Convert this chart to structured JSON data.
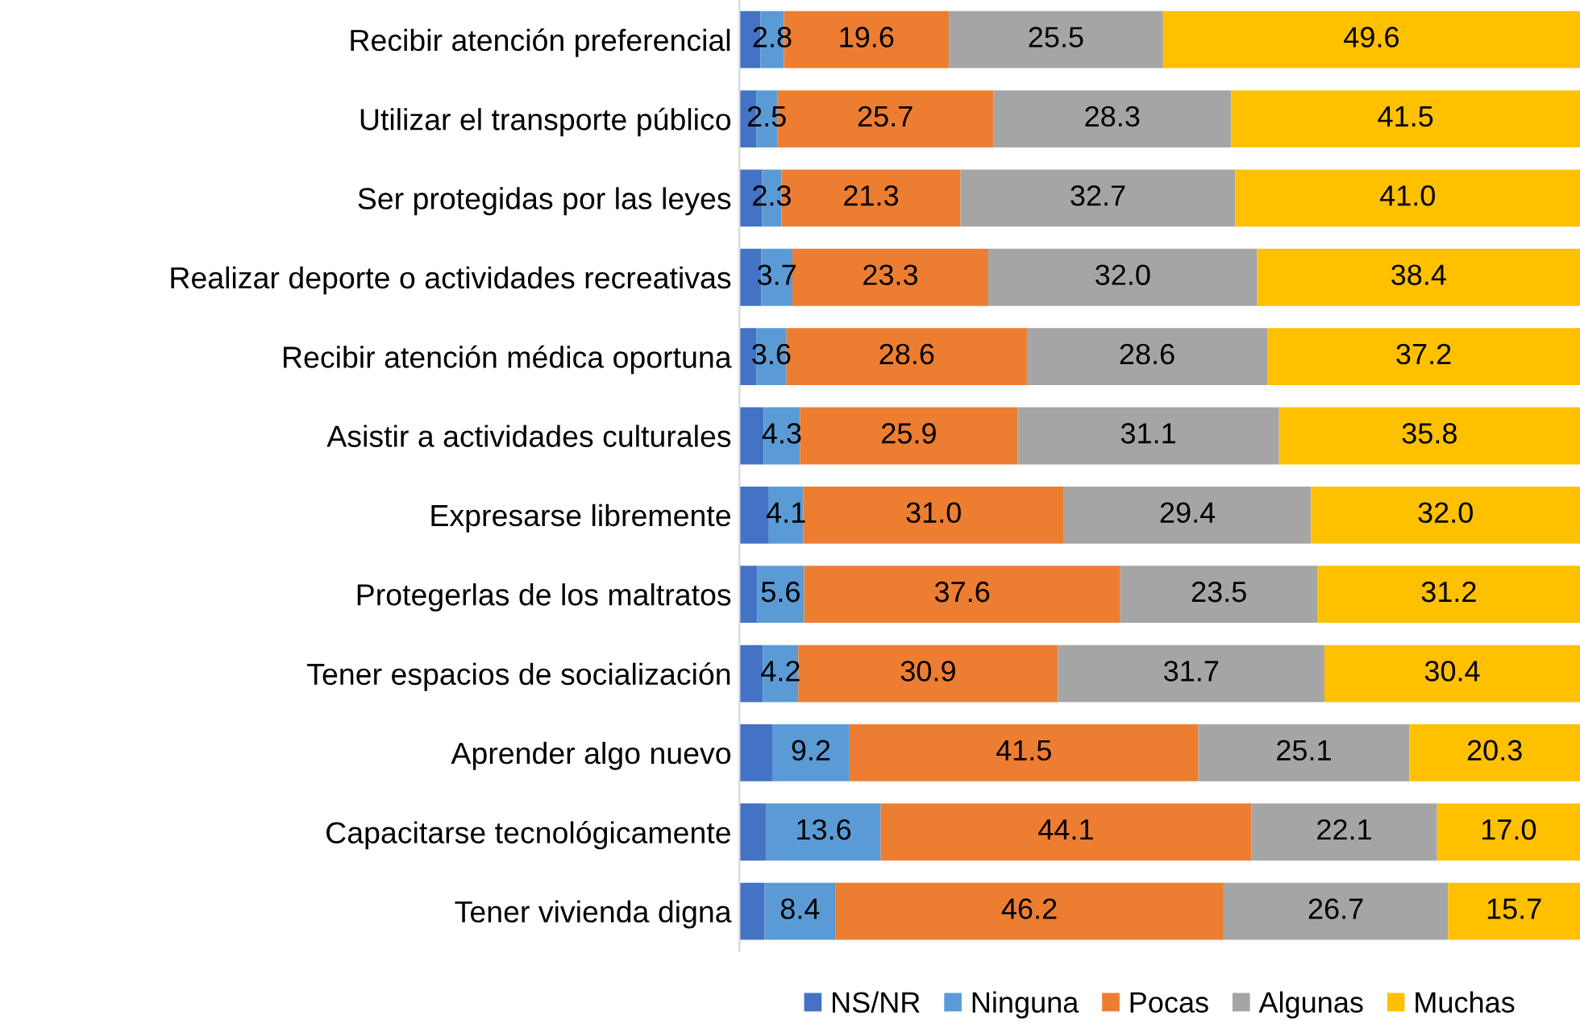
{
  "chart_data": {
    "type": "bar",
    "orientation": "horizontal",
    "stacked": true,
    "legend": "bottom",
    "grid": false,
    "tick_labels": "y",
    "xlim": [
      0,
      100
    ],
    "categories": [
      "Recibir atención preferencial",
      "Utilizar el transporte público",
      "Ser protegidas por las leyes",
      "Realizar deporte o actividades recreativas",
      "Recibir atención médica oportuna",
      "Asistir a actividades culturales",
      "Expresarse libremente",
      "Protegerlas de los maltratos",
      "Tener espacios de socialización",
      "Aprender algo nuevo",
      "Capacitarse tecnológicamente",
      "Tener vivienda digna"
    ],
    "series": [
      {
        "name": "NS/NR",
        "color": "#4472c4",
        "values": [
          2.5,
          2.0,
          2.7,
          2.6,
          2.0,
          2.9,
          3.5,
          2.1,
          2.8,
          3.9,
          3.2,
          3.0
        ]
      },
      {
        "name": "Ninguna",
        "color": "#5b9bd5",
        "values": [
          2.8,
          2.5,
          2.3,
          3.7,
          3.6,
          4.3,
          4.1,
          5.6,
          4.2,
          9.2,
          13.6,
          8.4
        ],
        "value_labels": [
          "2.8",
          "2.5",
          "2.3",
          "3.7",
          "3.6",
          "4.3",
          "4.1",
          "5.6",
          "4.2",
          "9.2",
          "13.6",
          "8.4"
        ]
      },
      {
        "name": "Pocas",
        "color": "#ed7d31",
        "values": [
          19.6,
          25.7,
          21.3,
          23.3,
          28.6,
          25.9,
          31.0,
          37.6,
          30.9,
          41.5,
          44.1,
          46.2
        ],
        "value_labels": [
          "19.6",
          "25.7",
          "21.3",
          "23.3",
          "28.6",
          "25.9",
          "31.0",
          "37.6",
          "30.9",
          "41.5",
          "44.1",
          "46.2"
        ]
      },
      {
        "name": "Algunas",
        "color": "#a5a5a5",
        "values": [
          25.5,
          28.3,
          32.7,
          32.0,
          28.6,
          31.1,
          29.4,
          23.5,
          31.7,
          25.1,
          22.1,
          26.7
        ],
        "value_labels": [
          "25.5",
          "28.3",
          "32.7",
          "32.0",
          "28.6",
          "31.1",
          "29.4",
          "23.5",
          "31.7",
          "25.1",
          "22.1",
          "26.7"
        ]
      },
      {
        "name": "Muchas",
        "color": "#ffc000",
        "values": [
          49.6,
          41.5,
          41.0,
          38.4,
          37.2,
          35.8,
          32.0,
          31.2,
          30.4,
          20.3,
          17.0,
          15.7
        ],
        "value_labels": [
          "49.6",
          "41.5",
          "41.0",
          "38.4",
          "37.2",
          "35.8",
          "32.0",
          "31.2",
          "30.4",
          "20.3",
          "17.0",
          "15.7"
        ]
      }
    ]
  }
}
